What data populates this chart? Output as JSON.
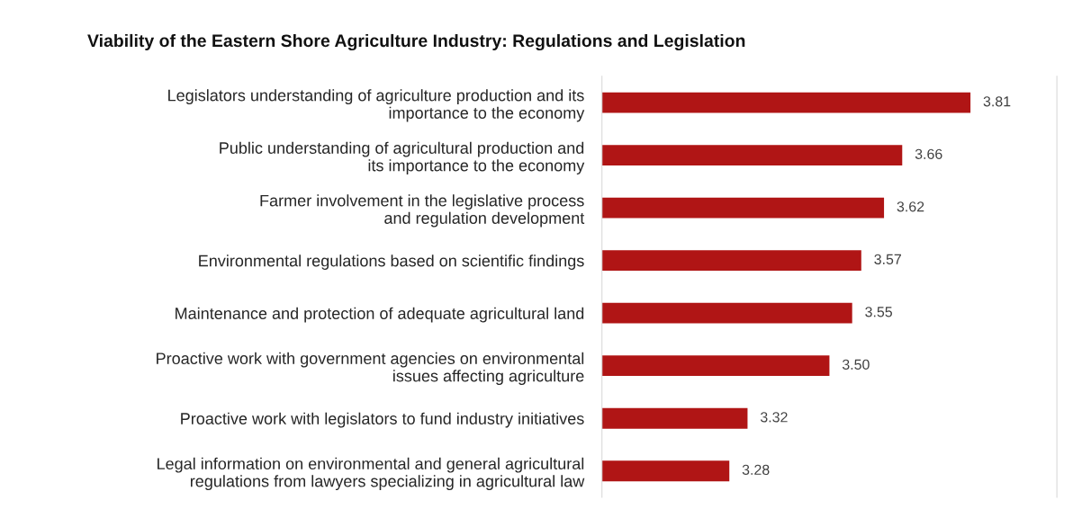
{
  "chart_data": {
    "type": "bar",
    "orientation": "horizontal",
    "title": "Viability of the Eastern Shore Agriculture Industry: Regulations and Legislation",
    "categories": [
      "Legislators understanding of agriculture production and its\nimportance to the economy",
      "Public understanding of agricultural production and\nits importance to the economy",
      "Farmer involvement in the legislative process\nand regulation development",
      "Environmental regulations based on scientific findings",
      "Maintenance and protection of adequate agricultural land",
      "Proactive work with government agencies on environmental\nissues affecting agriculture",
      "Proactive work with legislators to fund industry initiatives",
      "Legal information on environmental and general agricultural\nregulations from lawyers specializing in agricultural law"
    ],
    "values": [
      3.81,
      3.66,
      3.62,
      3.57,
      3.55,
      3.5,
      3.32,
      3.28
    ],
    "value_labels": [
      "3.81",
      "3.66",
      "3.62",
      "3.57",
      "3.55",
      "3.50",
      "3.32",
      "3.28"
    ],
    "color": "#b01515",
    "xlim": [
      3,
      4
    ],
    "tick_labels": "y",
    "grid": false
  }
}
